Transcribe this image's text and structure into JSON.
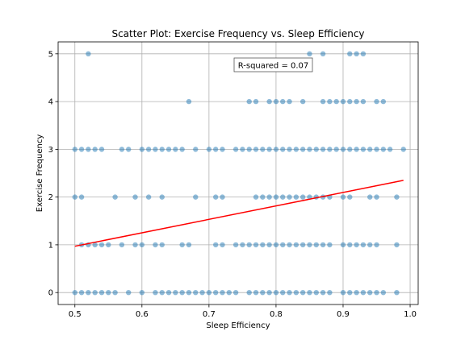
{
  "chart_data": {
    "type": "scatter",
    "title": "Scatter Plot: Exercise Frequency vs. Sleep Efficiency",
    "xlabel": "Sleep Efficiency",
    "ylabel": "Exercise Frequency",
    "xlim": [
      0.475,
      1.012
    ],
    "ylim": [
      -0.25,
      5.25
    ],
    "xticks": [
      "0.5",
      "0.6",
      "0.7",
      "0.8",
      "0.9",
      "1.0"
    ],
    "yticks": [
      "0",
      "1",
      "2",
      "3",
      "4",
      "5"
    ],
    "grid": true,
    "annotation": "R-squared = 0.07",
    "point_color": "#1f77b4",
    "point_alpha": 0.5,
    "line_color": "#ff0000",
    "trendline": {
      "x": [
        0.5,
        0.99
      ],
      "y": [
        0.97,
        2.35
      ]
    },
    "points": [
      {
        "y": 5,
        "x": [
          0.52,
          0.85,
          0.87,
          0.91,
          0.92,
          0.93
        ]
      },
      {
        "y": 4,
        "x": [
          0.67,
          0.76,
          0.77,
          0.79,
          0.8,
          0.81,
          0.82,
          0.84,
          0.87,
          0.88,
          0.89,
          0.9,
          0.91,
          0.92,
          0.93,
          0.95,
          0.96
        ]
      },
      {
        "y": 3,
        "x": [
          0.5,
          0.51,
          0.52,
          0.53,
          0.54,
          0.57,
          0.58,
          0.6,
          0.61,
          0.62,
          0.63,
          0.64,
          0.65,
          0.66,
          0.68,
          0.7,
          0.71,
          0.72,
          0.74,
          0.75,
          0.76,
          0.77,
          0.78,
          0.79,
          0.8,
          0.81,
          0.82,
          0.83,
          0.84,
          0.85,
          0.86,
          0.87,
          0.88,
          0.89,
          0.9,
          0.91,
          0.92,
          0.93,
          0.94,
          0.95,
          0.96,
          0.97,
          0.99
        ]
      },
      {
        "y": 2,
        "x": [
          0.5,
          0.51,
          0.56,
          0.59,
          0.61,
          0.63,
          0.68,
          0.71,
          0.72,
          0.77,
          0.78,
          0.79,
          0.8,
          0.81,
          0.82,
          0.83,
          0.84,
          0.85,
          0.86,
          0.87,
          0.88,
          0.9,
          0.91,
          0.94,
          0.95,
          0.98
        ]
      },
      {
        "y": 1,
        "x": [
          0.51,
          0.52,
          0.53,
          0.54,
          0.55,
          0.57,
          0.59,
          0.6,
          0.62,
          0.63,
          0.66,
          0.67,
          0.71,
          0.72,
          0.74,
          0.75,
          0.76,
          0.77,
          0.78,
          0.79,
          0.8,
          0.81,
          0.82,
          0.83,
          0.84,
          0.85,
          0.86,
          0.87,
          0.88,
          0.9,
          0.91,
          0.92,
          0.93,
          0.94,
          0.95,
          0.98
        ]
      },
      {
        "y": 0,
        "x": [
          0.5,
          0.51,
          0.52,
          0.53,
          0.54,
          0.55,
          0.56,
          0.58,
          0.6,
          0.62,
          0.63,
          0.64,
          0.65,
          0.66,
          0.67,
          0.68,
          0.69,
          0.7,
          0.71,
          0.72,
          0.73,
          0.74,
          0.76,
          0.77,
          0.78,
          0.79,
          0.8,
          0.81,
          0.82,
          0.83,
          0.84,
          0.85,
          0.86,
          0.87,
          0.88,
          0.9,
          0.91,
          0.92,
          0.93,
          0.94,
          0.95,
          0.96,
          0.98
        ]
      }
    ]
  }
}
